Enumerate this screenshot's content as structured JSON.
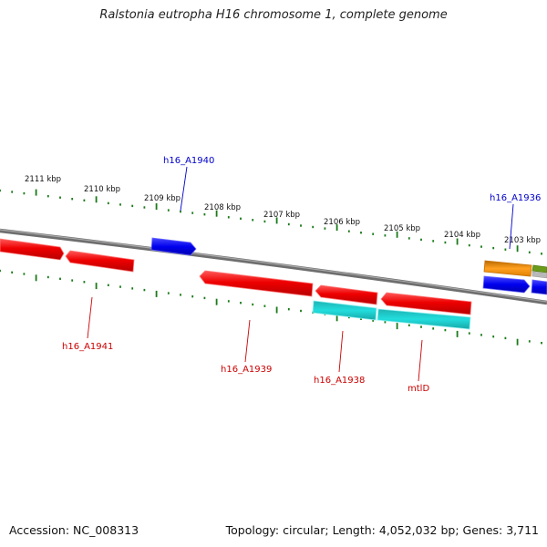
{
  "title": "Ralstonia eutropha H16 chromosome 1, complete genome",
  "footer": {
    "accession": "Accession: NC_008313",
    "summary": "Topology: circular; Length: 4,052,032 bp; Genes: 3,711"
  },
  "scale_labels": [
    "2111 kbp",
    "2110 kbp",
    "2109 kbp",
    "2108 kbp",
    "2107 kbp",
    "2106 kbp",
    "2105 kbp",
    "2104 kbp",
    "2103 kbp"
  ],
  "gene_labels": {
    "h16_A1940": "h16_A1940",
    "h16_A1936": "h16_A1936",
    "h16_A1941": "h16_A1941",
    "h16_A1939": "h16_A1939",
    "h16_A1938": "h16_A1938",
    "mtlD": "mtlD"
  },
  "colors": {
    "backbone": "#7a7a7a",
    "tick": "#1a7a1a",
    "forward_gene": "#0000ee",
    "reverse_gene": "#ee0000",
    "rna_gene": "#22cccc",
    "orange_gene": "#f08c00",
    "olive_gene": "#6a9a1a",
    "grey_gene": "#aaaaaa",
    "label_blue": "#0000cc",
    "label_red": "#cc0000"
  }
}
